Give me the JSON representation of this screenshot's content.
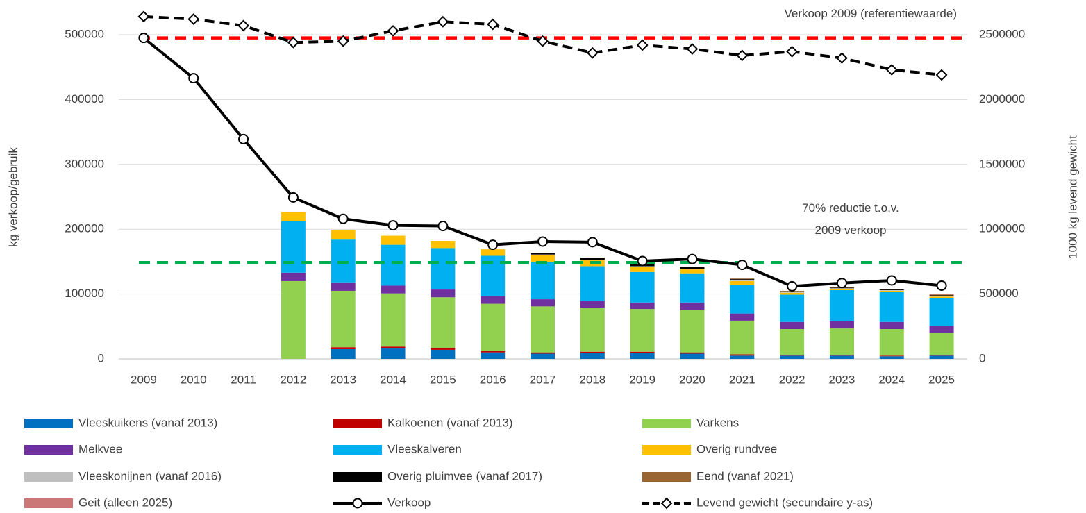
{
  "chart_data": {
    "type": "bar",
    "stacked": true,
    "y_label": "kg verkoop/gebruik",
    "y2_label": "1000 kg levend gewicht",
    "categories": [
      "2009",
      "2010",
      "2011",
      "2012",
      "2013",
      "2014",
      "2015",
      "2016",
      "2017",
      "2018",
      "2019",
      "2020",
      "2021",
      "2022",
      "2023",
      "2024",
      "2025"
    ],
    "ylim": [
      0,
      500000
    ],
    "yticks": [
      0,
      100000,
      200000,
      300000,
      400000,
      500000
    ],
    "y2lim": [
      0,
      2500000
    ],
    "y2ticks": [
      0,
      500000,
      1000000,
      1500000,
      2000000,
      2500000
    ],
    "grid": true,
    "reference_lines": [
      {
        "label": [
          "Verkoop 2009 (referentiewaarde)"
        ],
        "value": 495000,
        "color": "#ff0000"
      },
      {
        "label": [
          "70% reductie t.o.v.",
          "2009 verkoop"
        ],
        "value": 148500,
        "color": "#00b050"
      }
    ],
    "series": [
      {
        "name": "Vleeskuikens (vanaf 2013)",
        "type": "bar",
        "color": "#0070c0",
        "values": [
          null,
          null,
          null,
          null,
          15000,
          16000,
          14000,
          10000,
          8000,
          9000,
          9000,
          8000,
          5000,
          5000,
          5000,
          4000,
          5000
        ]
      },
      {
        "name": "Kalkoenen (vanaf 2013)",
        "type": "bar",
        "color": "#c00000",
        "values": [
          null,
          null,
          null,
          null,
          3000,
          3000,
          3000,
          2000,
          2000,
          2000,
          2000,
          2000,
          2000,
          1000,
          1000,
          1000,
          1000
        ]
      },
      {
        "name": "Varkens",
        "type": "bar",
        "color": "#92d050",
        "values": [
          null,
          null,
          null,
          120000,
          87000,
          82000,
          78000,
          73000,
          71000,
          68000,
          66000,
          65000,
          52000,
          40000,
          41000,
          41000,
          34000
        ]
      },
      {
        "name": "Melkvee",
        "type": "bar",
        "color": "#7030a0",
        "values": [
          null,
          null,
          null,
          13000,
          13000,
          12000,
          12000,
          12000,
          11000,
          10000,
          10000,
          12000,
          11000,
          11000,
          11000,
          11000,
          11000
        ]
      },
      {
        "name": "Vleeskalveren",
        "type": "bar",
        "color": "#00b0f0",
        "values": [
          null,
          null,
          null,
          79000,
          66000,
          63000,
          64000,
          62000,
          58000,
          54000,
          47000,
          45000,
          44000,
          42000,
          48000,
          46000,
          43000
        ]
      },
      {
        "name": "Overig rundvee",
        "type": "bar",
        "color": "#ffc000",
        "values": [
          null,
          null,
          null,
          14000,
          15000,
          14000,
          11000,
          10000,
          10000,
          9000,
          8000,
          6000,
          6000,
          3000,
          2000,
          2000,
          2000
        ]
      },
      {
        "name": "Vleeskonijnen (vanaf 2016)",
        "type": "bar",
        "color": "#bfbfbf",
        "values": [
          null,
          null,
          null,
          null,
          null,
          null,
          null,
          1000,
          1000,
          1000,
          1000,
          1000,
          1000,
          1000,
          1000,
          1000,
          1000
        ]
      },
      {
        "name": "Overig pluimvee (vanaf 2017)",
        "type": "bar",
        "color": "#000000",
        "values": [
          null,
          null,
          null,
          null,
          null,
          null,
          null,
          null,
          2000,
          3000,
          3000,
          3000,
          2000,
          1000,
          1000,
          1000,
          1000
        ]
      },
      {
        "name": "Eend (vanaf 2021)",
        "type": "bar",
        "color": "#996633",
        "values": [
          null,
          null,
          null,
          null,
          null,
          null,
          null,
          null,
          null,
          null,
          null,
          null,
          1000,
          1000,
          1000,
          1000,
          1000
        ]
      },
      {
        "name": "Geit (alleen 2025)",
        "type": "bar",
        "color": "#cc7777",
        "values": [
          null,
          null,
          null,
          null,
          null,
          null,
          null,
          null,
          null,
          null,
          null,
          null,
          null,
          null,
          null,
          null,
          500
        ]
      },
      {
        "name": "Verkoop",
        "type": "line",
        "color": "#000000",
        "marker": "circle",
        "dashed": false,
        "values": [
          495000,
          433000,
          339000,
          249000,
          216000,
          206000,
          205000,
          176000,
          181000,
          180000,
          151000,
          154000,
          145000,
          112000,
          117000,
          121000,
          113000
        ]
      },
      {
        "name": "Levend gewicht (secundaire y-as)",
        "type": "line",
        "axis": "y2",
        "color": "#000000",
        "marker": "diamond",
        "dashed": true,
        "values": [
          2640000,
          2620000,
          2570000,
          2440000,
          2450000,
          2530000,
          2600000,
          2580000,
          2450000,
          2360000,
          2420000,
          2390000,
          2340000,
          2370000,
          2320000,
          2230000,
          2190000
        ]
      }
    ]
  }
}
